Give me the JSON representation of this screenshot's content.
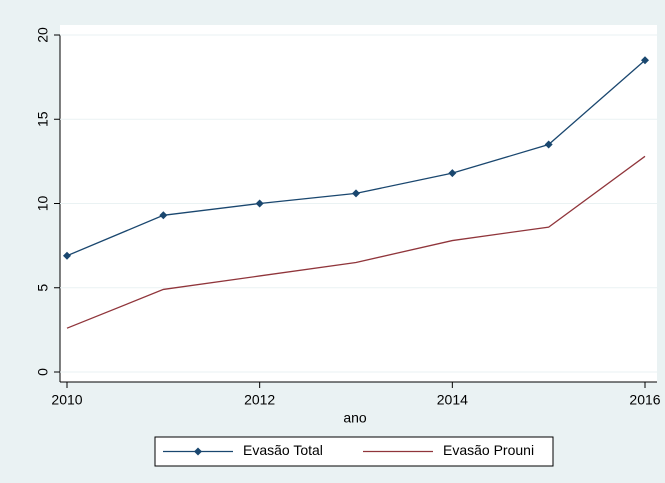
{
  "chart_data": {
    "type": "line",
    "x_label": "ano",
    "x": [
      2010,
      2011,
      2012,
      2013,
      2014,
      2015,
      2016
    ],
    "xlim": [
      2010,
      2016
    ],
    "xticks": [
      2010,
      2012,
      2014,
      2016
    ],
    "ylim": [
      0,
      20
    ],
    "yticks": [
      0,
      5,
      10,
      15,
      20
    ],
    "grid": true,
    "legend": "bottom",
    "series": [
      {
        "name": "Evasão Total",
        "color": "#1a476f",
        "marker": "diamond",
        "values": [
          6.9,
          9.3,
          10.0,
          10.6,
          11.8,
          13.5,
          18.5
        ]
      },
      {
        "name": "Evasão Prouni",
        "color": "#90353b",
        "values": [
          2.6,
          4.9,
          5.7,
          6.5,
          7.8,
          8.6,
          12.8
        ]
      }
    ]
  }
}
